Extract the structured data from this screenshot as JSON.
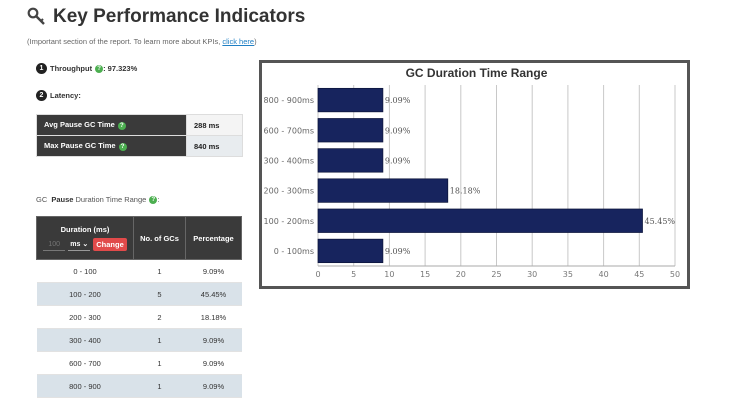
{
  "header": {
    "title": "Key Performance Indicators"
  },
  "subtitle": {
    "text": "(Important section of the report. To learn more about KPIs, ",
    "link": "click here",
    "suffix": ")"
  },
  "throughput": {
    "badge": "1",
    "label": "Throughput",
    "value": " : 97.323%"
  },
  "latency": {
    "badge": "2",
    "label": "Latency:",
    "rows": [
      {
        "label": "Avg Pause GC Time",
        "value": "288 ms"
      },
      {
        "label": "Max Pause GC Time",
        "value": "840 ms"
      }
    ]
  },
  "range": {
    "prefix": "GC",
    "bold": "Pause",
    "suffix": "Duration Time Range"
  },
  "duration_table": {
    "headers": {
      "duration": "Duration (ms)",
      "count": "No. of GCs",
      "percentage": "Percentage"
    },
    "input_value": "100",
    "unit": "ms",
    "change_label": "Change",
    "rows": [
      {
        "range": "0 - 100",
        "count": "1",
        "pct": "9.09%"
      },
      {
        "range": "100 - 200",
        "count": "5",
        "pct": "45.45%"
      },
      {
        "range": "200 - 300",
        "count": "2",
        "pct": "18.18%"
      },
      {
        "range": "300 - 400",
        "count": "1",
        "pct": "9.09%"
      },
      {
        "range": "600 - 700",
        "count": "1",
        "pct": "9.09%"
      },
      {
        "range": "800 - 900",
        "count": "1",
        "pct": "9.09%"
      }
    ]
  },
  "colors": {
    "bar": "#17245e",
    "help": "#4caf50",
    "button": "#e14a4a",
    "header_bg": "#3a3a3a"
  },
  "chart_data": {
    "type": "bar",
    "orientation": "horizontal",
    "title": "GC Duration Time Range",
    "categories": [
      "800 - 900ms",
      "600 - 700ms",
      "300 - 400ms",
      "200 - 300ms",
      "100 - 200ms",
      "0 - 100ms"
    ],
    "values": [
      9.09,
      9.09,
      9.09,
      18.18,
      45.45,
      9.09
    ],
    "data_labels": [
      "9.09%",
      "9.09%",
      "9.09%",
      "18.18%",
      "45.45%",
      "9.09%"
    ],
    "xlim": [
      0,
      50
    ],
    "xticks": [
      "0",
      "5",
      "10",
      "15",
      "20",
      "25",
      "30",
      "35",
      "40",
      "45",
      "50"
    ],
    "grid": true
  }
}
